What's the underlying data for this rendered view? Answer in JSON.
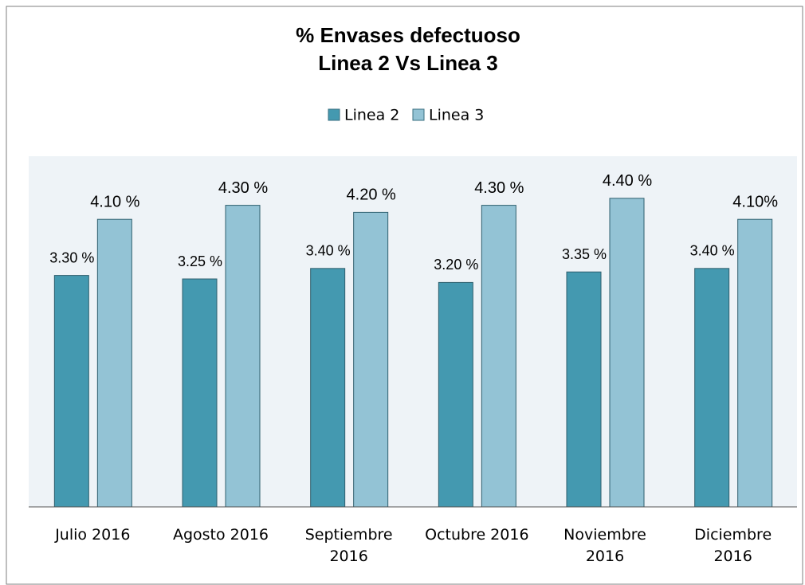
{
  "chart_data": {
    "type": "bar",
    "title": "% Envases defectuoso",
    "subtitle": "Linea 2 Vs Linea 3",
    "categories": [
      "Julio 2016",
      "Agosto 2016",
      "Septiembre 2016",
      "Octubre 2016",
      "Noviembre 2016",
      "Diciembre 2016"
    ],
    "series": [
      {
        "name": "Linea 2",
        "color": "#4499b0",
        "values": [
          3.3,
          3.25,
          3.4,
          3.2,
          3.35,
          3.4
        ],
        "value_labels": [
          "3.30 %",
          "3.25 %",
          "3.40 %",
          "3.20 %",
          "3.35 %",
          "3.40 %"
        ]
      },
      {
        "name": "Linea 3",
        "color": "#93c3d5",
        "values": [
          4.1,
          4.3,
          4.2,
          4.3,
          4.4,
          4.1
        ],
        "value_labels": [
          "4.10 %",
          "4.30 %",
          "4.20 %",
          "4.30 %",
          "4.40 %",
          "4.10%"
        ]
      }
    ],
    "ylim": [
      0,
      5
    ],
    "legend": "top"
  }
}
